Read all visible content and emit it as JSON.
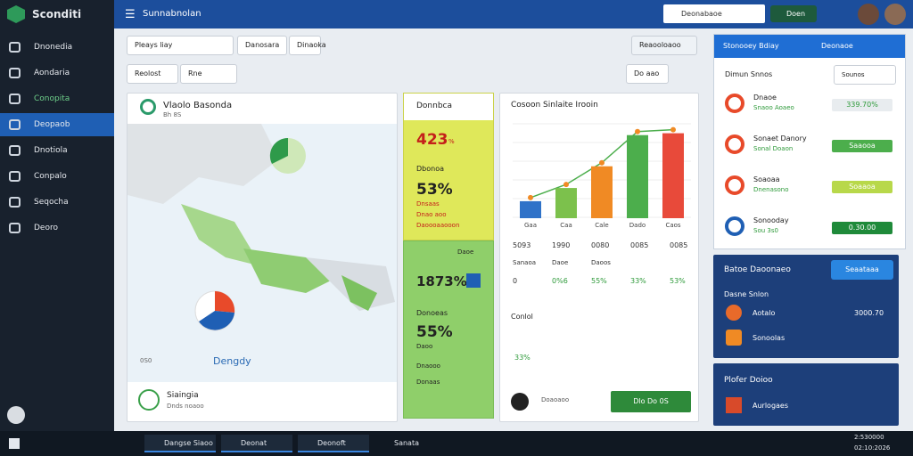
{
  "sidebar": {
    "brand": "Sconditi",
    "items": [
      "Dnonedia",
      "Aondaria",
      "Conopita",
      "Deopaob",
      "Dnotiola",
      "Conpalo",
      "Seqocha",
      "Deoro"
    ]
  },
  "topbar": {
    "title": "Sunnabnolan",
    "select": "Deonabaoe",
    "button": "Doen"
  },
  "toolbar": {
    "tab1": "Pleays liay",
    "tab2": "Danosara",
    "tab3": "Dinaoka",
    "filter1": "Reolost",
    "filter2": "Rne",
    "search": "Do aao",
    "export": "Reaooloaoo"
  },
  "map_card": {
    "title": "Vlaolo Basonda",
    "subtitle": "Bh 8S",
    "label": "Dengdy",
    "corner": "0S0",
    "footer_title": "Siaingia",
    "footer_sub": "Dnds noaoo"
  },
  "yellow_card": {
    "title": "Donnbca",
    "value1": "423",
    "unit1": "%",
    "label1": "Dbonoa",
    "value2": "53%",
    "note1": "Dnsaas",
    "note2": "Dnao aoo",
    "note3": "Daoooaaooon"
  },
  "green_card": {
    "select": "Daoe",
    "value1": "1873%",
    "label1": "Donoeas",
    "value2": "55%",
    "note1": "Daoo",
    "note2": "Dnaooo",
    "note3": "Donaas"
  },
  "chart_card": {
    "title": "Cosoon Sinlaite Irooin",
    "chart_data": {
      "type": "bar",
      "categories": [
        "Gaa",
        "Caa",
        "Cale",
        "Dado",
        "Caos"
      ],
      "values": [
        18,
        32,
        55,
        88,
        90
      ],
      "colors": [
        "#2f72c8",
        "#7cc14c",
        "#f08a24",
        "#4cae4c",
        "#e84a3a"
      ],
      "ylim": [
        0,
        100
      ]
    },
    "table": [
      [
        "5093",
        "1990",
        "0080",
        "0085",
        "0085"
      ],
      [
        "Sanaoa",
        "Daoe",
        "Daoos",
        "",
        ""
      ],
      [
        "0",
        "0%6",
        "55%",
        "33%",
        "53%"
      ]
    ],
    "section": "Conlol",
    "section_value": "33%",
    "dropdown": "Doaoaoo",
    "action": "Dlo Do 0S"
  },
  "right_panel": {
    "title": "Stonooey Bdiay",
    "search": "Deonaoe",
    "subtitle": "Dimun Snnos",
    "select": "Sounos",
    "items": [
      {
        "name": "Dnaoe",
        "sub": "Snaoo Aoaeo",
        "value": "339.70%"
      },
      {
        "name": "Sonaet Danory",
        "sub": "Sonal Doaon",
        "value": "Saaooa"
      },
      {
        "name": "Soaoaa",
        "sub": "Dnenasono",
        "value": "Soaaoa"
      },
      {
        "name": "Sonooday",
        "sub": "Sou 3s0",
        "value": "0.30.00"
      }
    ],
    "header_icon": "Dsoe"
  },
  "panel2": {
    "title": "Batoe Daoonaeo",
    "button": "Seaataaa",
    "subtitle": "Dasne Snlon",
    "item1": "Aotalo",
    "value1": "3000.70",
    "item2": "Sonoolas"
  },
  "panel3": {
    "title": "Plofer Doioo",
    "item": "Aurlogaes"
  },
  "taskbar": {
    "items": [
      "Dangse Siaoo",
      "Deonat",
      "Deonoft",
      "Sanata"
    ],
    "time": "2:530000",
    "date": "02:10:2026"
  }
}
